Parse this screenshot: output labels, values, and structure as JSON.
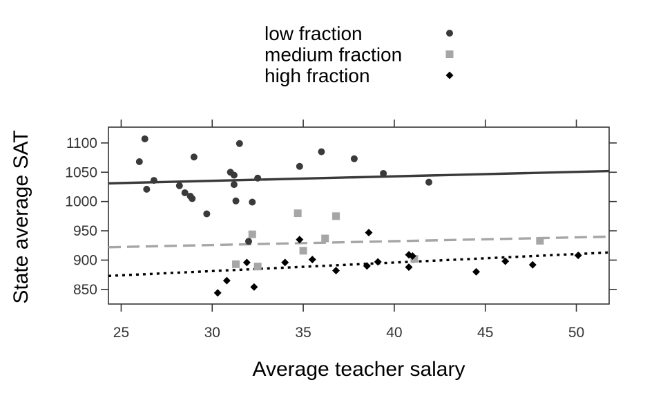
{
  "chart_data": {
    "type": "scatter",
    "xlabel": "Average teacher salary",
    "ylabel": "State average SAT",
    "xlim": [
      24.3,
      51.8
    ],
    "ylim": [
      825,
      1127
    ],
    "xticks": [
      25,
      30,
      35,
      40,
      45,
      50
    ],
    "yticks": [
      850,
      900,
      950,
      1000,
      1050,
      1100
    ],
    "grid": false,
    "legend_position": "top",
    "series": [
      {
        "name": "low fraction",
        "marker": "circle",
        "color": "#3a3a3a",
        "line_style": "solid",
        "fit": {
          "start": [
            24.3,
            1031
          ],
          "end": [
            51.8,
            1052
          ]
        },
        "points": [
          [
            26.0,
            1068
          ],
          [
            26.3,
            1107
          ],
          [
            26.4,
            1021
          ],
          [
            26.8,
            1036
          ],
          [
            28.2,
            1027
          ],
          [
            28.5,
            1015
          ],
          [
            28.8,
            1009
          ],
          [
            28.9,
            1005
          ],
          [
            29.0,
            1076
          ],
          [
            29.7,
            979
          ],
          [
            31.0,
            1050
          ],
          [
            31.2,
            1029
          ],
          [
            31.2,
            1045
          ],
          [
            31.3,
            1001
          ],
          [
            31.5,
            1099
          ],
          [
            32.0,
            932
          ],
          [
            32.2,
            999
          ],
          [
            32.5,
            1040
          ],
          [
            34.8,
            1060
          ],
          [
            36.0,
            1085
          ],
          [
            37.8,
            1073
          ],
          [
            39.4,
            1048
          ],
          [
            41.9,
            1033
          ]
        ]
      },
      {
        "name": "medium fraction",
        "marker": "square",
        "color": "#a6a6a6",
        "line_style": "dashed",
        "fit": {
          "start": [
            24.3,
            922
          ],
          "end": [
            51.8,
            940
          ]
        },
        "points": [
          [
            31.3,
            893
          ],
          [
            32.2,
            944
          ],
          [
            32.5,
            889
          ],
          [
            34.7,
            980
          ],
          [
            35.0,
            916
          ],
          [
            36.2,
            937
          ],
          [
            36.8,
            975
          ],
          [
            41.1,
            902
          ],
          [
            48.0,
            933
          ]
        ]
      },
      {
        "name": "high fraction",
        "marker": "diamond",
        "color": "#000000",
        "line_style": "dotted",
        "fit": {
          "start": [
            24.3,
            873
          ],
          "end": [
            51.8,
            913
          ]
        },
        "points": [
          [
            30.3,
            844
          ],
          [
            30.8,
            865
          ],
          [
            31.9,
            896
          ],
          [
            32.3,
            854
          ],
          [
            34.0,
            896
          ],
          [
            34.8,
            935
          ],
          [
            35.5,
            901
          ],
          [
            36.8,
            882
          ],
          [
            38.5,
            890
          ],
          [
            38.6,
            947
          ],
          [
            39.1,
            897
          ],
          [
            40.8,
            909
          ],
          [
            40.8,
            888
          ],
          [
            41.0,
            907
          ],
          [
            44.5,
            880
          ],
          [
            46.1,
            898
          ],
          [
            47.6,
            892
          ],
          [
            50.1,
            908
          ]
        ]
      }
    ]
  }
}
